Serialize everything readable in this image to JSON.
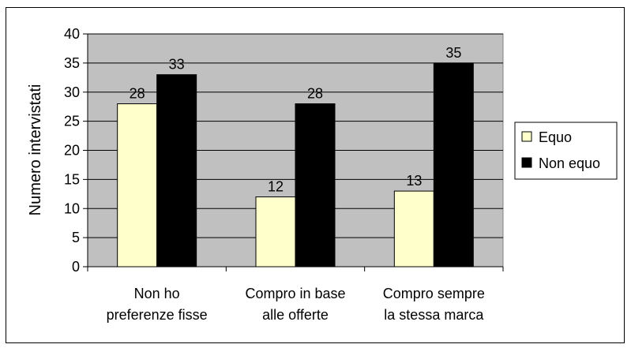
{
  "chart_data": {
    "type": "bar",
    "title": "",
    "xlabel": "",
    "ylabel": "Numero intervistati",
    "ylim": [
      0,
      40
    ],
    "yticks": [
      0,
      5,
      10,
      15,
      20,
      25,
      30,
      35,
      40
    ],
    "grid": true,
    "legend_position": "right",
    "categories": [
      [
        "Non ho",
        "preferenze fisse"
      ],
      [
        "Compro in base",
        "alle offerte"
      ],
      [
        "Compro sempre",
        "la stessa marca"
      ]
    ],
    "series": [
      {
        "name": "Equo",
        "values": [
          28,
          12,
          13
        ],
        "color": "#FFFFCC"
      },
      {
        "name": "Non equo",
        "values": [
          33,
          28,
          35
        ],
        "color": "#000000"
      }
    ],
    "plot_background": "#C0C0C0"
  }
}
